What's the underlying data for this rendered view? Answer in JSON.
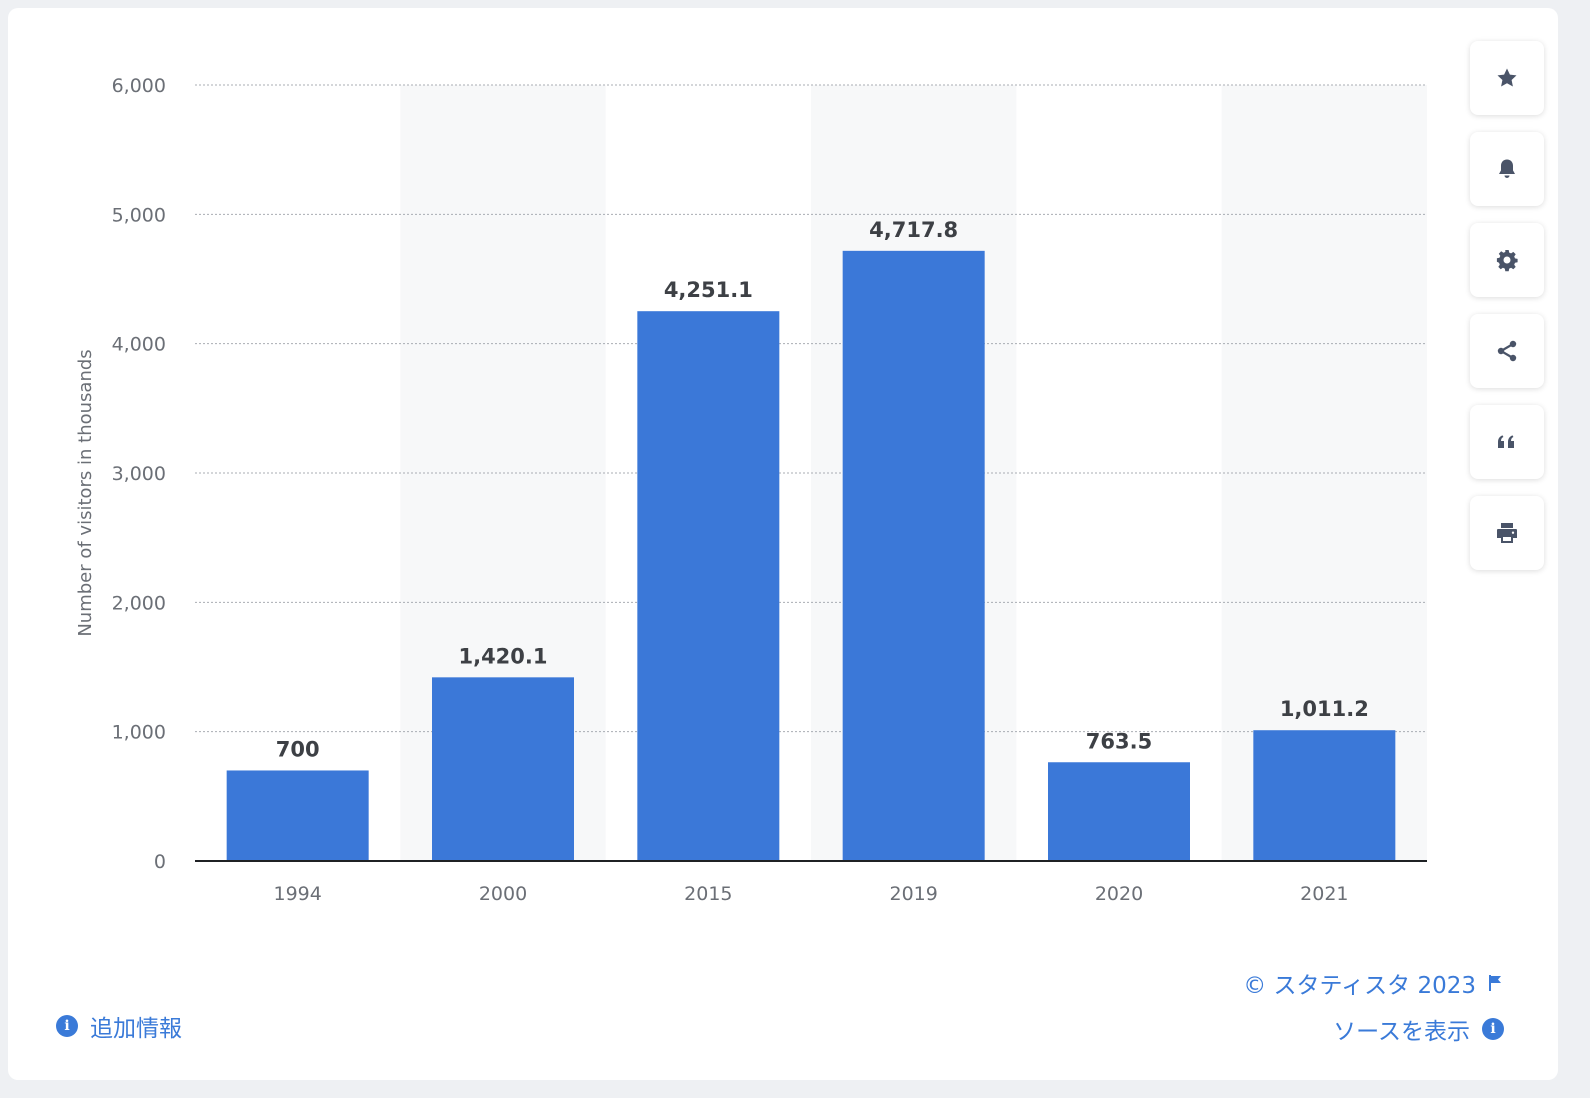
{
  "chart_data": {
    "type": "bar",
    "categories": [
      "1994",
      "2000",
      "2015",
      "2019",
      "2020",
      "2021"
    ],
    "values": [
      700,
      1420.1,
      4251.1,
      4717.8,
      763.5,
      1011.2
    ],
    "value_labels": [
      "700",
      "1,420.1",
      "4,251.1",
      "4,717.8",
      "763.5",
      "1,011.2"
    ],
    "ylabel": "Number of visitors in thousands",
    "ylim": [
      0,
      6000
    ],
    "yticks": [
      0,
      1000,
      2000,
      3000,
      4000,
      5000,
      6000
    ],
    "ytick_labels": [
      "0",
      "1,000",
      "2,000",
      "3,000",
      "4,000",
      "5,000",
      "6,000"
    ],
    "grid": true,
    "bar_color": "#3b78d8",
    "alt_band_color": "#f7f8f9"
  },
  "toolbar": {
    "buttons": [
      {
        "icon": "star-icon"
      },
      {
        "icon": "bell-icon"
      },
      {
        "icon": "gear-icon"
      },
      {
        "icon": "share-icon"
      },
      {
        "icon": "quote-icon"
      },
      {
        "icon": "print-icon"
      }
    ]
  },
  "footer": {
    "additional_info": "追加情報",
    "copyright": "© スタティスタ 2023",
    "show_source": "ソースを表示"
  },
  "colors": {
    "accent": "#3a7ad8",
    "icon": "#4a5468"
  }
}
